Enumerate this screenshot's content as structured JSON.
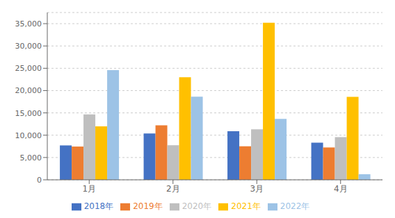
{
  "chart_data": {
    "type": "bar",
    "categories": [
      "1月",
      "2月",
      "3月",
      "4月"
    ],
    "series": [
      {
        "name": "2018年",
        "color": "#4472c4",
        "values": [
          7711.628,
          10387.229,
          10898.473,
          8314.363
        ]
      },
      {
        "name": "2019年",
        "color": "#ed7d31",
        "values": [
          7454.971,
          12211.097,
          7517.791,
          7251.712
        ]
      },
      {
        "name": "2020年",
        "color": "#bfbfbf",
        "values": [
          14675.747,
          7751.711,
          11337.21,
          9559.485
        ]
      },
      {
        "name": "2021年",
        "color": "#ffc000",
        "values": [
          11992.726,
          22995.459,
          35222.96,
          18578.639
        ]
      },
      {
        "name": "2022年",
        "color": "#9dc3e6",
        "values": [
          24597.368,
          18645.718,
          13645.555,
          1255.472
        ]
      }
    ],
    "ylim": [
      0,
      37500
    ],
    "yticks": [
      0,
      {
        "value": 5000,
        "label": "5,000"
      },
      {
        "value": 10000,
        "label": "10,000"
      },
      {
        "value": 15000,
        "label": "15,000"
      },
      {
        "value": 20000,
        "label": "20,000"
      },
      {
        "value": 25000,
        "label": "25,000"
      },
      {
        "value": 30000,
        "label": "30,000"
      },
      {
        "value": 35000,
        "label": "35,000"
      }
    ],
    "grid": true,
    "legend": "bottom"
  }
}
